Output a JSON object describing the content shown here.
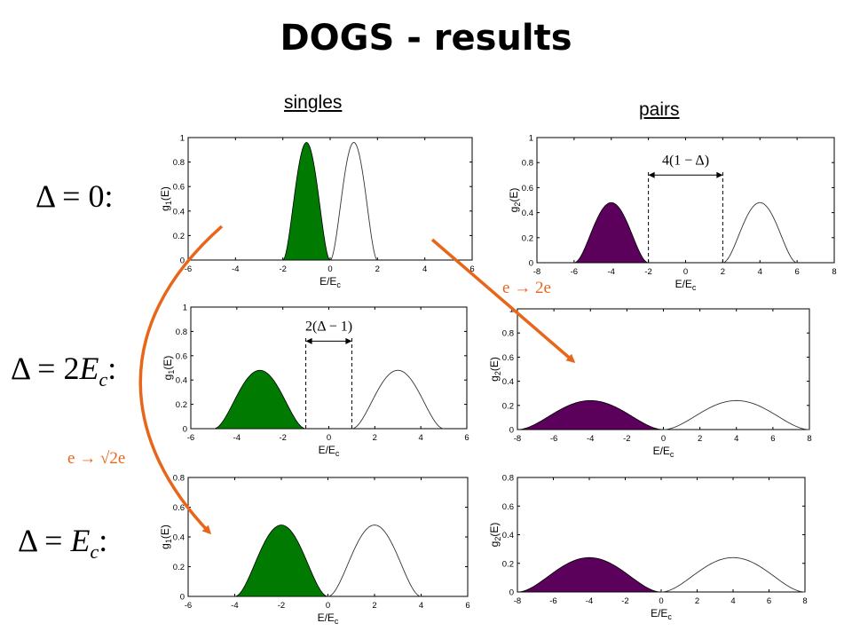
{
  "title": "DOGS - results",
  "columns": {
    "left": "singles",
    "right": "pairs"
  },
  "rows": [
    {
      "delta": "Δ",
      "rest": " = 0:"
    },
    {
      "delta": "Δ",
      "rest": " = 2",
      "E": "E",
      "sub": "c",
      "tail": ":"
    },
    {
      "delta": "Δ",
      "rest": " = ",
      "E": "E",
      "sub": "c",
      "tail": ":"
    }
  ],
  "annotations": {
    "arrow_right_label": {
      "pre": "e",
      "arrow": " → ",
      "post": "2e"
    },
    "arrow_left_label": {
      "pre": "e",
      "arrow": " → ",
      "post": "√2e"
    },
    "width_top": "4(1 − Δ)",
    "width_mid": "2(Δ − 1)"
  },
  "colors": {
    "green": "#007a00",
    "purple": "#5b005b",
    "orange": "#e8661a"
  },
  "chart_data": [
    {
      "type": "area",
      "name": "singles-row1",
      "ylabel": "g1(E)",
      "xlabel": "E/Ec",
      "xlim": [
        -6,
        6
      ],
      "ylim": [
        0,
        1
      ],
      "xticks": [
        -6,
        -4,
        -2,
        0,
        2,
        4,
        6
      ],
      "yticks": [
        0,
        0.2,
        0.4,
        0.6,
        0.8,
        1
      ],
      "peak": 0.96,
      "filled": {
        "center": -1,
        "range": [
          -2,
          0
        ]
      },
      "outline": {
        "center": 1,
        "range": [
          0,
          2
        ]
      },
      "fill": "green"
    },
    {
      "type": "area",
      "name": "pairs-row1",
      "ylabel": "g2(E)",
      "xlabel": "E/Ec",
      "xlim": [
        -8,
        8
      ],
      "ylim": [
        0,
        1
      ],
      "xticks": [
        -8,
        -6,
        -4,
        -2,
        0,
        2,
        4,
        6,
        8
      ],
      "yticks": [
        0,
        0.2,
        0.4,
        0.6,
        0.8,
        1
      ],
      "peak": 0.48,
      "filled": {
        "center": -4,
        "range": [
          -6,
          -2
        ]
      },
      "outline": {
        "center": 4,
        "range": [
          2,
          6
        ]
      },
      "fill": "purple",
      "gap": [
        -2,
        2
      ]
    },
    {
      "type": "area",
      "name": "singles-row2",
      "ylabel": "g1(E)",
      "xlabel": "E/Ec",
      "xlim": [
        -6,
        6
      ],
      "ylim": [
        0,
        1
      ],
      "xticks": [
        -6,
        -4,
        -2,
        0,
        2,
        4,
        6
      ],
      "yticks": [
        0,
        0.2,
        0.4,
        0.6,
        0.8,
        1
      ],
      "peak": 0.48,
      "filled": {
        "center": -3,
        "range": [
          -5,
          -1
        ]
      },
      "outline": {
        "center": 3,
        "range": [
          1,
          5
        ]
      },
      "fill": "green",
      "gap": [
        -1,
        1
      ]
    },
    {
      "type": "area",
      "name": "pairs-row2",
      "ylabel": "g2(E)",
      "xlabel": "E/Ec",
      "xlim": [
        -8,
        8
      ],
      "ylim": [
        0,
        1
      ],
      "xticks": [
        -8,
        -6,
        -4,
        -2,
        0,
        2,
        4,
        6,
        8
      ],
      "yticks": [
        0,
        0.2,
        0.4,
        0.6,
        0.8,
        1
      ],
      "peak": 0.24,
      "filled": {
        "center": -4,
        "range": [
          -8,
          0
        ]
      },
      "outline": {
        "center": 4,
        "range": [
          0,
          8
        ]
      },
      "fill": "purple"
    },
    {
      "type": "area",
      "name": "singles-row3",
      "ylabel": "g1(E)",
      "xlabel": "E/Ec",
      "xlim": [
        -6,
        6
      ],
      "ylim": [
        0,
        0.8
      ],
      "xticks": [
        -6,
        -4,
        -2,
        0,
        2,
        4,
        6
      ],
      "yticks": [
        0,
        0.2,
        0.4,
        0.6,
        0.8
      ],
      "peak": 0.48,
      "filled": {
        "center": -2,
        "range": [
          -4,
          0
        ]
      },
      "outline": {
        "center": 2,
        "range": [
          0,
          4
        ]
      },
      "fill": "green"
    },
    {
      "type": "area",
      "name": "pairs-row3",
      "ylabel": "g2(E)",
      "xlabel": "E/Ec",
      "xlim": [
        -8,
        8
      ],
      "ylim": [
        0,
        0.8
      ],
      "xticks": [
        -8,
        -6,
        -4,
        -2,
        0,
        2,
        4,
        6,
        8
      ],
      "yticks": [
        0,
        0.2,
        0.4,
        0.6,
        0.8
      ],
      "peak": 0.24,
      "filled": {
        "center": -4,
        "range": [
          -8,
          0
        ]
      },
      "outline": {
        "center": 4,
        "range": [
          0,
          8
        ]
      },
      "fill": "purple"
    }
  ]
}
